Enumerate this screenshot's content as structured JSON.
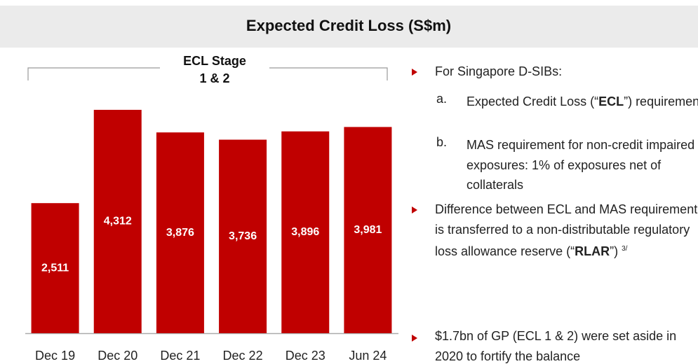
{
  "chart_data": {
    "type": "bar",
    "title": "Expected Credit Loss (S$m)",
    "annotation": "ECL Stage",
    "annotation_2": "1 & 2",
    "categories": [
      "Dec 19",
      "Dec 20",
      "Dec 21",
      "Dec 22",
      "Dec 23",
      "Jun 24"
    ],
    "values": [
      2511,
      4312,
      3876,
      3736,
      3896,
      3981
    ],
    "value_labels": [
      "2,511",
      "4,312",
      "3,876",
      "3,736",
      "3,896",
      "3,981"
    ],
    "color": "#c00000",
    "ylim": [
      0,
      5000
    ]
  },
  "bullets": [
    {
      "text": "For Singapore D-SIBs:",
      "items": [
        {
          "label": "a.",
          "text_1": "Expected Credit Loss (“",
          "bold": "ECL",
          "text_2": "”) requirement"
        },
        {
          "label": "b.",
          "text": "MAS requirement for non-credit impaired exposures: 1% of exposures net of collaterals"
        }
      ]
    },
    {
      "text_1": "Difference between ECL and MAS requirement is transferred to a non-distributable regulatory loss allowance reserve (“",
      "bold": "RLAR",
      "text_2": "”)",
      "footnote": "3/"
    },
    {
      "text": "$1.7bn of GP (ECL 1 & 2) were set aside in 2020 to fortify the balance"
    }
  ]
}
